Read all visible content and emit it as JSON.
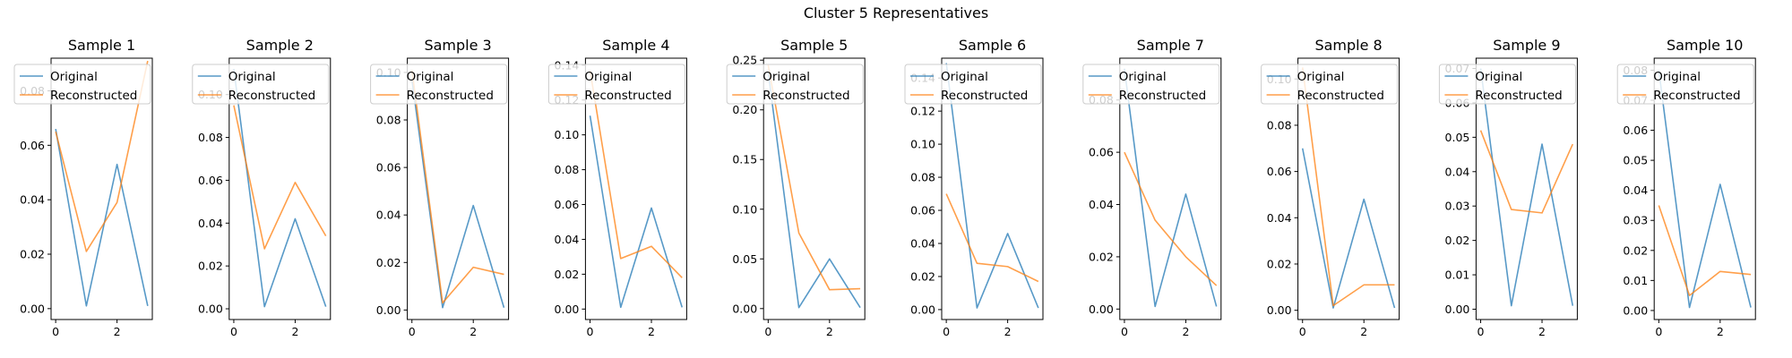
{
  "figure_title": "Cluster 5 Representatives",
  "colors": {
    "original": "#1f77b4",
    "reconstructed": "#ff7f0e"
  },
  "chart_data": [
    {
      "type": "line",
      "title": "Sample 1",
      "x": [
        0,
        1,
        2,
        3
      ],
      "xticks": [
        0,
        2
      ],
      "ylim": [
        -0.004,
        0.092
      ],
      "yticks": [
        0.0,
        0.02,
        0.04,
        0.06,
        0.08
      ],
      "yticklabels": [
        "0.00",
        "0.02",
        "0.04",
        "0.06",
        "0.08"
      ],
      "legend": "top",
      "series": [
        {
          "name": "Original",
          "values": [
            0.066,
            0.001,
            0.053,
            0.001
          ]
        },
        {
          "name": "Reconstructed",
          "values": [
            0.065,
            0.021,
            0.039,
            0.091
          ]
        }
      ]
    },
    {
      "type": "line",
      "title": "Sample 2",
      "x": [
        0,
        1,
        2,
        3
      ],
      "xticks": [
        0,
        2
      ],
      "ylim": [
        -0.005,
        0.117
      ],
      "yticks": [
        0.0,
        0.02,
        0.04,
        0.06,
        0.08,
        0.1
      ],
      "yticklabels": [
        "0.00",
        "0.02",
        "0.04",
        "0.06",
        "0.08",
        "0.10"
      ],
      "legend": "top",
      "series": [
        {
          "name": "Original",
          "values": [
            0.112,
            0.001,
            0.042,
            0.001
          ]
        },
        {
          "name": "Reconstructed",
          "values": [
            0.095,
            0.028,
            0.059,
            0.034
          ]
        }
      ]
    },
    {
      "type": "line",
      "title": "Sample 3",
      "x": [
        0,
        1,
        2,
        3
      ],
      "xticks": [
        0,
        2
      ],
      "ylim": [
        -0.004,
        0.106
      ],
      "yticks": [
        0.0,
        0.02,
        0.04,
        0.06,
        0.08,
        0.1
      ],
      "yticklabels": [
        "0.00",
        "0.02",
        "0.04",
        "0.06",
        "0.08",
        "0.10"
      ],
      "legend": "top",
      "series": [
        {
          "name": "Original",
          "values": [
            0.097,
            0.001,
            0.044,
            0.001
          ]
        },
        {
          "name": "Reconstructed",
          "values": [
            0.101,
            0.003,
            0.018,
            0.015
          ]
        }
      ]
    },
    {
      "type": "line",
      "title": "Sample 4",
      "x": [
        0,
        1,
        2,
        3
      ],
      "xticks": [
        0,
        2
      ],
      "ylim": [
        -0.006,
        0.144
      ],
      "yticks": [
        0.0,
        0.02,
        0.04,
        0.06,
        0.08,
        0.1,
        0.12,
        0.14
      ],
      "yticklabels": [
        "0.00",
        "0.02",
        "0.04",
        "0.06",
        "0.08",
        "0.10",
        "0.12",
        "0.14"
      ],
      "legend": "top",
      "series": [
        {
          "name": "Original",
          "values": [
            0.111,
            0.001,
            0.058,
            0.001
          ]
        },
        {
          "name": "Reconstructed",
          "values": [
            0.137,
            0.029,
            0.036,
            0.018
          ]
        }
      ]
    },
    {
      "type": "line",
      "title": "Sample 5",
      "x": [
        0,
        1,
        2,
        3
      ],
      "xticks": [
        0,
        2
      ],
      "ylim": [
        -0.011,
        0.252
      ],
      "yticks": [
        0.0,
        0.05,
        0.1,
        0.15,
        0.2,
        0.25
      ],
      "yticklabels": [
        "0.00",
        "0.05",
        "0.10",
        "0.15",
        "0.20",
        "0.25"
      ],
      "legend": "top",
      "series": [
        {
          "name": "Original",
          "values": [
            0.238,
            0.001,
            0.05,
            0.001
          ]
        },
        {
          "name": "Reconstructed",
          "values": [
            0.245,
            0.076,
            0.019,
            0.02
          ]
        }
      ]
    },
    {
      "type": "line",
      "title": "Sample 6",
      "x": [
        0,
        1,
        2,
        3
      ],
      "xticks": [
        0,
        2
      ],
      "ylim": [
        -0.006,
        0.152
      ],
      "yticks": [
        0.0,
        0.02,
        0.04,
        0.06,
        0.08,
        0.1,
        0.12,
        0.14
      ],
      "yticklabels": [
        "0.00",
        "0.02",
        "0.04",
        "0.06",
        "0.08",
        "0.10",
        "0.12",
        "0.14"
      ],
      "legend": "top",
      "series": [
        {
          "name": "Original",
          "values": [
            0.149,
            0.001,
            0.046,
            0.001
          ]
        },
        {
          "name": "Reconstructed",
          "values": [
            0.07,
            0.028,
            0.026,
            0.017
          ]
        }
      ]
    },
    {
      "type": "line",
      "title": "Sample 7",
      "x": [
        0,
        1,
        2,
        3
      ],
      "xticks": [
        0,
        2
      ],
      "ylim": [
        -0.004,
        0.096
      ],
      "yticks": [
        0.0,
        0.02,
        0.04,
        0.06,
        0.08
      ],
      "yticklabels": [
        "0.00",
        "0.02",
        "0.04",
        "0.06",
        "0.08"
      ],
      "legend": "top",
      "series": [
        {
          "name": "Original",
          "values": [
            0.092,
            0.001,
            0.044,
            0.001
          ]
        },
        {
          "name": "Reconstructed",
          "values": [
            0.06,
            0.034,
            0.02,
            0.009
          ]
        }
      ]
    },
    {
      "type": "line",
      "title": "Sample 8",
      "x": [
        0,
        1,
        2,
        3
      ],
      "xticks": [
        0,
        2
      ],
      "ylim": [
        -0.004,
        0.109
      ],
      "yticks": [
        0.0,
        0.02,
        0.04,
        0.06,
        0.08,
        0.1
      ],
      "yticklabels": [
        "0.00",
        "0.02",
        "0.04",
        "0.06",
        "0.08",
        "0.10"
      ],
      "legend": "top",
      "series": [
        {
          "name": "Original",
          "values": [
            0.07,
            0.001,
            0.048,
            0.001
          ]
        },
        {
          "name": "Reconstructed",
          "values": [
            0.105,
            0.002,
            0.011,
            0.011
          ]
        }
      ]
    },
    {
      "type": "line",
      "title": "Sample 9",
      "x": [
        0,
        1,
        2,
        3
      ],
      "xticks": [
        0,
        2
      ],
      "ylim": [
        -0.003,
        0.073
      ],
      "yticks": [
        0.0,
        0.01,
        0.02,
        0.03,
        0.04,
        0.05,
        0.06,
        0.07
      ],
      "yticklabels": [
        "0.00",
        "0.01",
        "0.02",
        "0.03",
        "0.04",
        "0.05",
        "0.06",
        "0.07"
      ],
      "legend": "top",
      "series": [
        {
          "name": "Original",
          "values": [
            0.07,
            0.001,
            0.048,
            0.001
          ]
        },
        {
          "name": "Reconstructed",
          "values": [
            0.052,
            0.029,
            0.028,
            0.048
          ]
        }
      ]
    },
    {
      "type": "line",
      "title": "Sample 10",
      "x": [
        0,
        1,
        2,
        3
      ],
      "xticks": [
        0,
        2
      ],
      "ylim": [
        -0.003,
        0.084
      ],
      "yticks": [
        0.0,
        0.01,
        0.02,
        0.03,
        0.04,
        0.05,
        0.06,
        0.07,
        0.08
      ],
      "yticklabels": [
        "0.00",
        "0.01",
        "0.02",
        "0.03",
        "0.04",
        "0.05",
        "0.06",
        "0.07",
        "0.08"
      ],
      "legend": "top",
      "series": [
        {
          "name": "Original",
          "values": [
            0.08,
            0.001,
            0.042,
            0.001
          ]
        },
        {
          "name": "Reconstructed",
          "values": [
            0.035,
            0.005,
            0.013,
            0.012
          ]
        }
      ]
    }
  ]
}
